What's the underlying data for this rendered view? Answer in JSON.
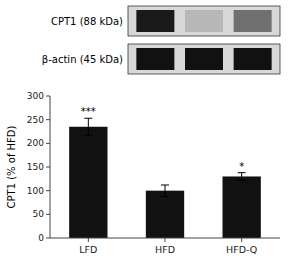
{
  "chart_data": [
    {
      "type": "blot",
      "series": [
        {
          "name": "CPT1 (88 kDa)",
          "colors": [
            "#1a1a1a",
            "#b8b8b8",
            "#707070"
          ]
        },
        {
          "name": "β-actin (45 kDa)",
          "colors": [
            "#111111",
            "#111111",
            "#111111"
          ]
        }
      ],
      "color": "#d8d8d8"
    },
    {
      "type": "bar",
      "categories": [
        "LFD",
        "HFD",
        "HFD-Q"
      ],
      "values": [
        235,
        100,
        130
      ],
      "errors": [
        18,
        12,
        8
      ],
      "color": "#111111",
      "ylabel": "CPT1 (% of HFD)",
      "ylim": [
        0,
        300
      ],
      "yticks": [
        0,
        50,
        100,
        150,
        200,
        250,
        300
      ],
      "annotations": [
        {
          "text": "***",
          "x": "LFD"
        },
        {
          "text": "*",
          "x": "HFD-Q"
        }
      ]
    }
  ]
}
